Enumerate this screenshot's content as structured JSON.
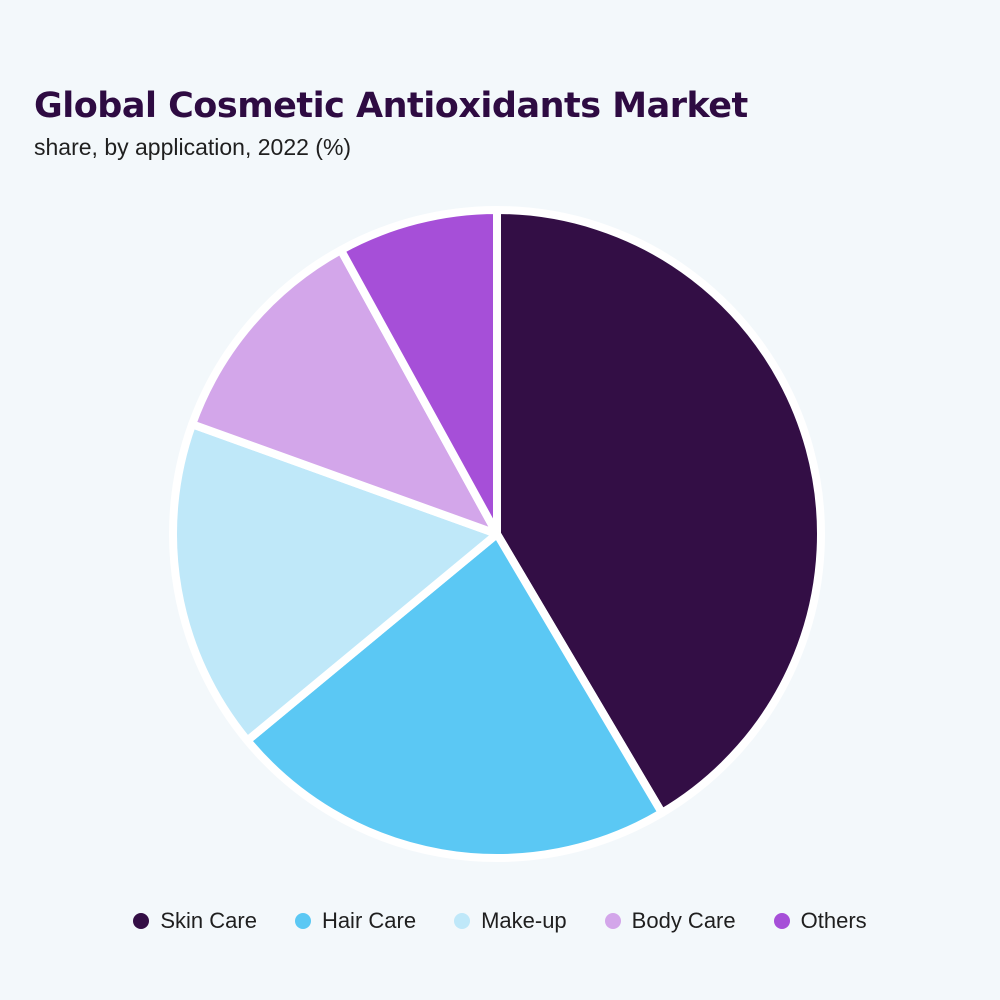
{
  "chart_data": {
    "type": "pie",
    "title": "Global Cosmetic Antioxidants Market",
    "subtitle": "share, by application, 2022 (%)",
    "categories": [
      "Skin Care",
      "Hair Care",
      "Make-up",
      "Body Care",
      "Others"
    ],
    "values": [
      41.5,
      22.5,
      16.5,
      11.5,
      8.0
    ],
    "colors": [
      "#330e45",
      "#5bc8f4",
      "#bfe8f9",
      "#d3a6ea",
      "#a64fd8"
    ],
    "legend": "bottom"
  }
}
